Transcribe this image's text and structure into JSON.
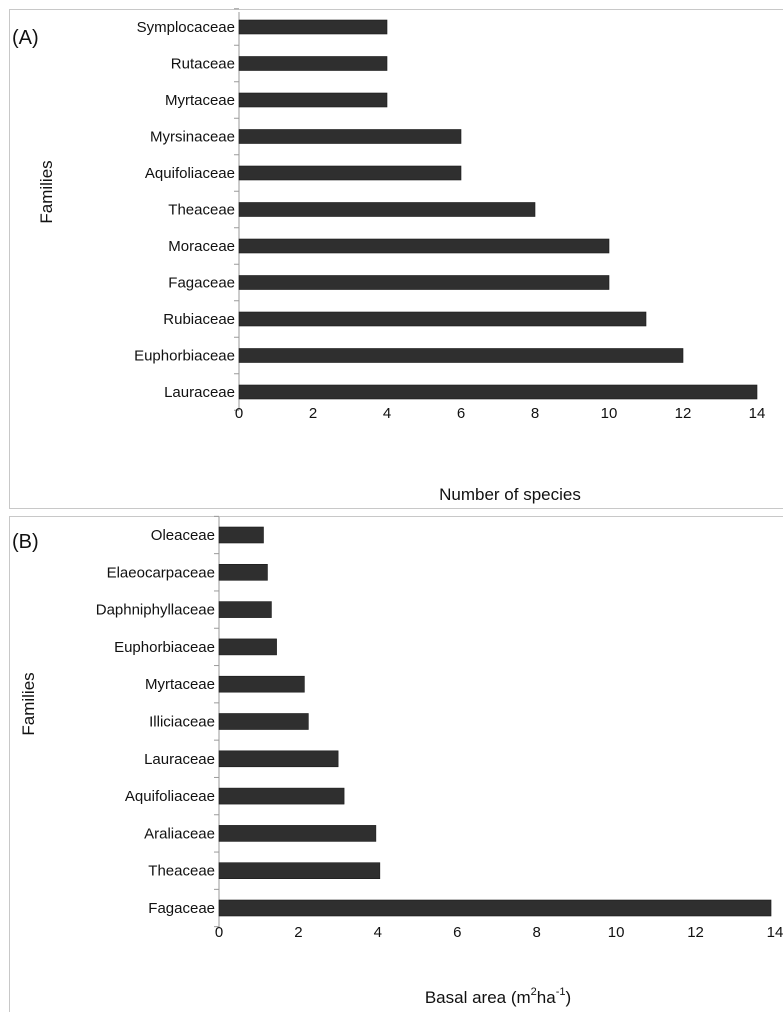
{
  "chart_data": [
    {
      "panel_label": "(A)",
      "type": "bar",
      "orientation": "horizontal",
      "categories": [
        "Lauraceae",
        "Euphorbiaceae",
        "Rubiaceae",
        "Fagaceae",
        "Moraceae",
        "Theaceae",
        "Aquifoliaceae",
        "Myrsinaceae",
        "Myrtaceae",
        "Rutaceae",
        "Symplocaceae"
      ],
      "values": [
        14,
        12,
        11,
        10,
        10,
        8,
        6,
        6,
        4,
        4,
        4
      ],
      "xlabel": "Number of species",
      "ylabel": "Families",
      "xlim": [
        0,
        14
      ],
      "xticks": [
        "0",
        "2",
        "4",
        "6",
        "8",
        "10",
        "12",
        "14"
      ],
      "bar_color": "#2f2f2f"
    },
    {
      "panel_label": "(B)",
      "type": "bar",
      "orientation": "horizontal",
      "categories": [
        "Fagaceae",
        "Theaceae",
        "Araliaceae",
        "Aquifoliaceae",
        "Lauraceae",
        "Illiciaceae",
        "Myrtaceae",
        "Euphorbiaceae",
        "Daphniphyllaceae",
        "Elaeocarpaceae",
        "Oleaceae"
      ],
      "values": [
        13.9,
        4.05,
        3.95,
        3.15,
        3.0,
        2.25,
        2.15,
        1.45,
        1.32,
        1.22,
        1.12
      ],
      "xlabel_main": "Basal area (m",
      "xlabel_sup1": "2",
      "xlabel_mid": "ha",
      "xlabel_sup2": "-1",
      "xlabel_end": ")",
      "ylabel": "Families",
      "xlim": [
        0,
        14
      ],
      "xticks": [
        "0",
        "2",
        "4",
        "6",
        "8",
        "10",
        "12",
        "14"
      ],
      "bar_color": "#2f2f2f"
    }
  ]
}
